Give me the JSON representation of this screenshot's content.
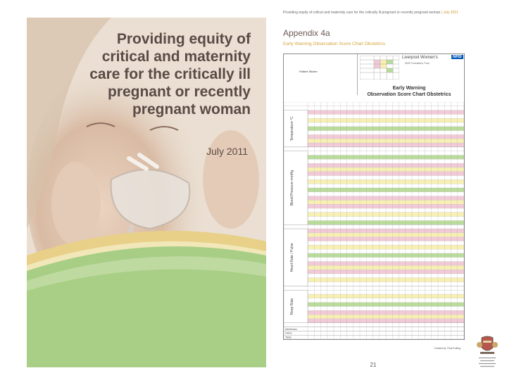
{
  "cover": {
    "title_lines": [
      "Providing equity of",
      "critical and maternity",
      "care for the critically ill",
      "pregnant or recently",
      "pregnant woman"
    ],
    "date": "July 2011"
  },
  "page": {
    "header": "Providing equity of critical and maternity care for the critically ill pregnant or recently pregnant woman",
    "header_date": "July 2011",
    "appendix_title": "Appendix 4a",
    "appendix_subtitle": "Early Warning Observation Score Chart Obstetrics",
    "page_number": "21"
  },
  "chart": {
    "patient_sticker": "Patient Sticker",
    "hospital_name": "Liverpool Women's",
    "nhs_label": "NHS",
    "hospital_sub": "NHS Foundation Trust",
    "heading_lines": [
      "Early Warning",
      "Observation Score Chart Obstetrics"
    ],
    "sections": [
      {
        "label": "Temperature °C",
        "rows": 9
      },
      {
        "label": "Blood Pressure mmHg",
        "rows": 18
      },
      {
        "label": "Heart Rate / Pulse",
        "rows": 14
      },
      {
        "label": "Resp Rate",
        "rows": 8
      }
    ],
    "footer_rows": [
      "Alertness",
      "Urine",
      "Total"
    ],
    "credit": "Created by: Paul Dolling"
  },
  "colors": {
    "pink": "#f2c9d6",
    "yellow": "#f7f0b2",
    "green": "#b9dc9a",
    "white": "#ffffff",
    "nhs_blue": "#0057b8",
    "accent_gold": "#d4a437"
  }
}
